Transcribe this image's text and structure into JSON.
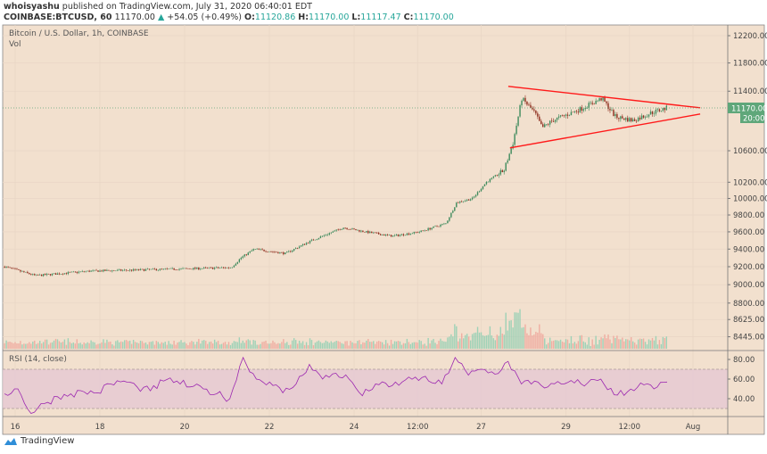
{
  "header": {
    "author": "whoisyashu",
    "published": "published on TradingView.com, July 31, 2020 06:40:01 EDT",
    "symbol": "COINBASE:BTCUSD, 60",
    "last": "11170.00",
    "change": "+54.05 (+0.49%)",
    "o_label": "O:",
    "o": "11120.86",
    "h_label": "H:",
    "h": "11170.00",
    "l_label": "L:",
    "l": "11117.47",
    "c_label": "C:",
    "c": "11170.00"
  },
  "legend": {
    "title": "Bitcoin / U.S. Dollar, 1h, COINBASE",
    "vol": "Vol",
    "rsi": "RSI (14, close)"
  },
  "colors": {
    "background": "#f2e0ce",
    "up": "#3d8a5c",
    "down": "#8e2d1d",
    "trendline": "#ff1a1a",
    "rsi_line": "#9c27b0",
    "rsi_band": "#e5c8d3",
    "price_label": "#5fa77a"
  },
  "price_axis": {
    "ticks": [
      "12200.00",
      "11800.00",
      "11400.00",
      "10600.00",
      "10200.00",
      "10000.00",
      "9800.00",
      "9600.00",
      "9400.00",
      "9200.00",
      "9000.00",
      "8800.00",
      "8625.00",
      "8445.00"
    ],
    "scale": "log",
    "current_price": "11170.00",
    "countdown": "20:00"
  },
  "rsi_axis": {
    "ticks": [
      "80.00",
      "60.00",
      "40.00"
    ],
    "band": [
      30,
      70
    ]
  },
  "time_axis": {
    "labels": [
      "16",
      "18",
      "20",
      "22",
      "24",
      "12:00",
      "27",
      "29",
      "12:00",
      "Aug"
    ]
  },
  "chart_data": {
    "type": "candlestick",
    "interval": "1h",
    "x_unit": "day of July 2020",
    "close_path": [
      [
        15.75,
        9200
      ],
      [
        16.48,
        9100
      ],
      [
        17.75,
        9150
      ],
      [
        19.5,
        9170
      ],
      [
        21.1,
        9190
      ],
      [
        21.33,
        9300
      ],
      [
        21.64,
        9400
      ],
      [
        22.38,
        9350
      ],
      [
        23.0,
        9500
      ],
      [
        23.75,
        9650
      ],
      [
        24.27,
        9600
      ],
      [
        24.9,
        9550
      ],
      [
        25.54,
        9600
      ],
      [
        26.17,
        9700
      ],
      [
        26.42,
        9950
      ],
      [
        26.8,
        10000
      ],
      [
        27.12,
        10200
      ],
      [
        27.54,
        10350
      ],
      [
        27.75,
        10700
      ],
      [
        27.96,
        11300
      ],
      [
        28.27,
        11100
      ],
      [
        28.44,
        10900
      ],
      [
        28.69,
        11000
      ],
      [
        29.33,
        11150
      ],
      [
        29.85,
        11300
      ],
      [
        30.17,
        11050
      ],
      [
        30.59,
        11000
      ],
      [
        31.0,
        11100
      ],
      [
        31.39,
        11170
      ]
    ],
    "trendlines": [
      {
        "from": [
          27.64,
          11468
        ],
        "to": [
          32.17,
          11171
        ]
      },
      {
        "from": [
          27.68,
          10637
        ],
        "to": [
          32.17,
          11086
        ]
      }
    ],
    "rsi": {
      "start_day": 15.75,
      "end_day": 31.39,
      "values": [
        45,
        50,
        25,
        35,
        42,
        45,
        47,
        46,
        55,
        58,
        52,
        48,
        58,
        58,
        52,
        50,
        45,
        40,
        82,
        60,
        57,
        46,
        55,
        75,
        60,
        66,
        60,
        43,
        55,
        52,
        57,
        62,
        58,
        55,
        82,
        64,
        70,
        65,
        78,
        55,
        58,
        52,
        55,
        56,
        56,
        60,
        44,
        47,
        56,
        50,
        57
      ]
    }
  }
}
